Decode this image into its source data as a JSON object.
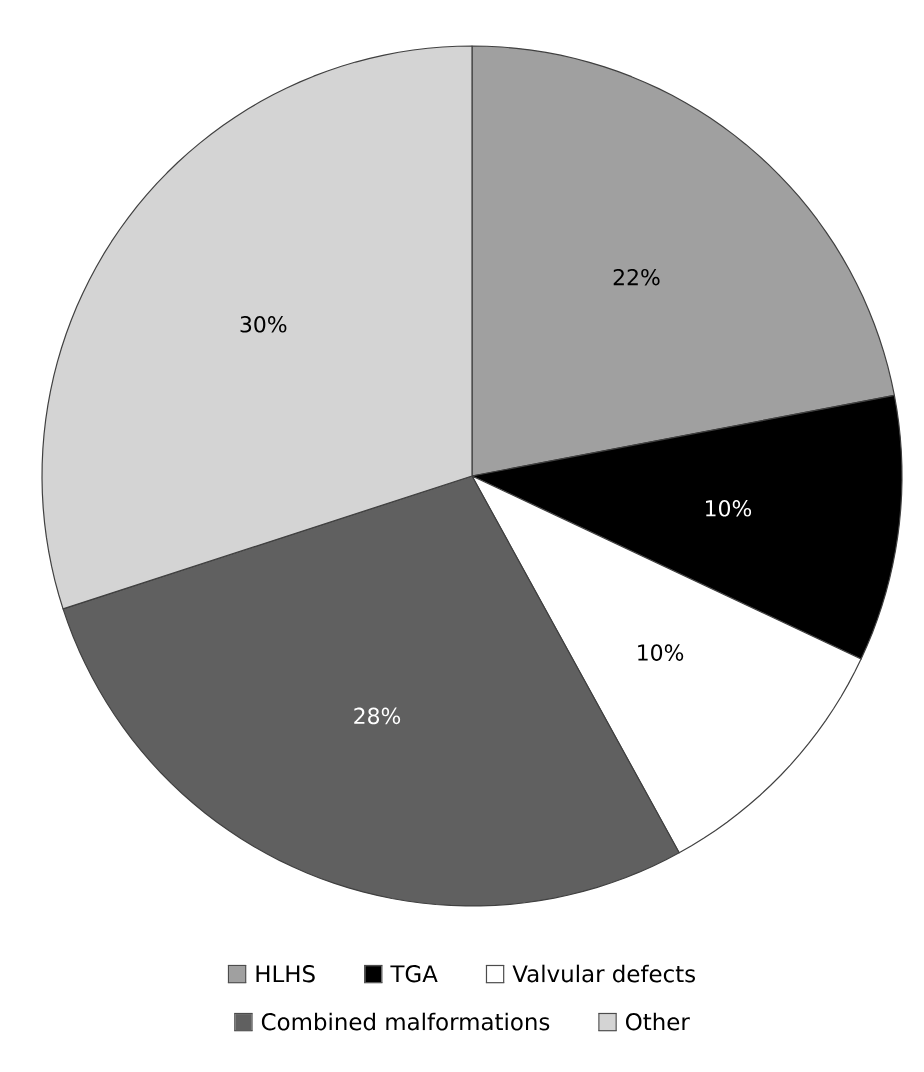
{
  "chart_data": {
    "type": "pie",
    "categories": [
      "HLHS",
      "TGA",
      "Valvular defects",
      "Combined malformations",
      "Other"
    ],
    "values": [
      22,
      10,
      10,
      28,
      30
    ],
    "value_labels": [
      "22%",
      "10%",
      "10%",
      "28%",
      "30%"
    ],
    "colors": [
      "#a0a0a0",
      "#000000",
      "#ffffff",
      "#606060",
      "#d4d4d4"
    ],
    "legend": "bottom"
  }
}
